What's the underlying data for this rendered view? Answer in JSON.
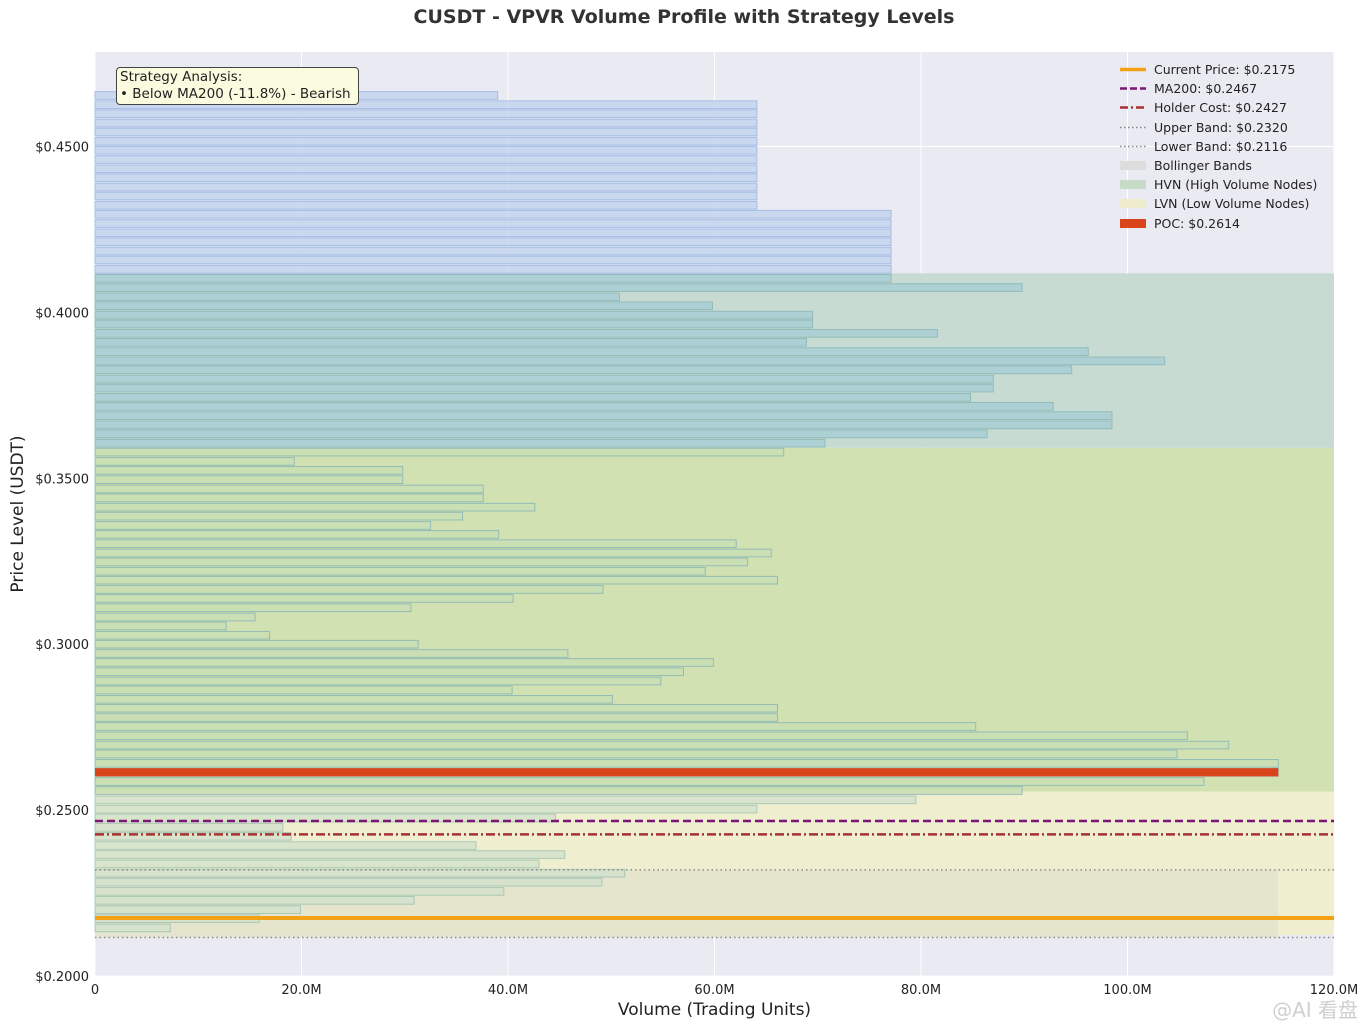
{
  "chart_data": {
    "type": "bar",
    "orientation": "horizontal",
    "title": "CUSDT - VPVR Volume Profile with Strategy Levels",
    "xlabel": "Volume (Trading Units)",
    "ylabel": "Price Level (USDT)",
    "xlim": [
      0,
      120
    ],
    "ylim": [
      0.2,
      0.4785
    ],
    "x_ticks": [
      {
        "value": 0,
        "label": "0"
      },
      {
        "value": 20,
        "label": "20.0M"
      },
      {
        "value": 40,
        "label": "40.0M"
      },
      {
        "value": 60,
        "label": "60.0M"
      },
      {
        "value": 80,
        "label": "80.0M"
      },
      {
        "value": 100,
        "label": "100.0M"
      },
      {
        "value": 120,
        "label": "120.0M"
      }
    ],
    "y_ticks": [
      {
        "value": 0.2,
        "label": "$0.2000"
      },
      {
        "value": 0.25,
        "label": "$0.2500"
      },
      {
        "value": 0.3,
        "label": "$0.3000"
      },
      {
        "value": 0.35,
        "label": "$0.3500"
      },
      {
        "value": 0.4,
        "label": "$0.4000"
      },
      {
        "value": 0.45,
        "label": "$0.4500"
      }
    ],
    "grid": true,
    "volume_unit": "M",
    "profile": [
      {
        "price": 0.2145,
        "volume": 7.3
      },
      {
        "price": 0.2173,
        "volume": 15.9
      },
      {
        "price": 0.22,
        "volume": 19.9
      },
      {
        "price": 0.2228,
        "volume": 30.9
      },
      {
        "price": 0.2255,
        "volume": 39.6
      },
      {
        "price": 0.2283,
        "volume": 49.1
      },
      {
        "price": 0.231,
        "volume": 51.3
      },
      {
        "price": 0.2338,
        "volume": 43.0
      },
      {
        "price": 0.2366,
        "volume": 45.5
      },
      {
        "price": 0.2393,
        "volume": 36.9
      },
      {
        "price": 0.2421,
        "volume": 19.0
      },
      {
        "price": 0.2448,
        "volume": 18.2
      },
      {
        "price": 0.2476,
        "volume": 44.6
      },
      {
        "price": 0.2503,
        "volume": 64.1
      },
      {
        "price": 0.2531,
        "volume": 79.5
      },
      {
        "price": 0.2559,
        "volume": 89.8
      },
      {
        "price": 0.2586,
        "volume": 107.4
      },
      {
        "price": 0.2614,
        "volume": 114.6
      },
      {
        "price": 0.2641,
        "volume": 114.6
      },
      {
        "price": 0.2669,
        "volume": 104.8
      },
      {
        "price": 0.2696,
        "volume": 109.8
      },
      {
        "price": 0.2724,
        "volume": 105.8
      },
      {
        "price": 0.2752,
        "volume": 85.3
      },
      {
        "price": 0.2779,
        "volume": 66.1
      },
      {
        "price": 0.2807,
        "volume": 66.1
      },
      {
        "price": 0.2834,
        "volume": 50.1
      },
      {
        "price": 0.2862,
        "volume": 40.4
      },
      {
        "price": 0.2889,
        "volume": 54.8
      },
      {
        "price": 0.2917,
        "volume": 57.0
      },
      {
        "price": 0.2945,
        "volume": 59.9
      },
      {
        "price": 0.2972,
        "volume": 45.8
      },
      {
        "price": 0.3,
        "volume": 31.3
      },
      {
        "price": 0.3027,
        "volume": 16.9
      },
      {
        "price": 0.3055,
        "volume": 12.7
      },
      {
        "price": 0.3082,
        "volume": 15.5
      },
      {
        "price": 0.311,
        "volume": 30.6
      },
      {
        "price": 0.3138,
        "volume": 40.5
      },
      {
        "price": 0.3165,
        "volume": 49.2
      },
      {
        "price": 0.3193,
        "volume": 66.1
      },
      {
        "price": 0.322,
        "volume": 59.1
      },
      {
        "price": 0.3248,
        "volume": 63.2
      },
      {
        "price": 0.3275,
        "volume": 65.5
      },
      {
        "price": 0.3303,
        "volume": 62.1
      },
      {
        "price": 0.3331,
        "volume": 39.1
      },
      {
        "price": 0.3358,
        "volume": 32.5
      },
      {
        "price": 0.3386,
        "volume": 35.6
      },
      {
        "price": 0.3413,
        "volume": 42.6
      },
      {
        "price": 0.3441,
        "volume": 37.6
      },
      {
        "price": 0.3468,
        "volume": 37.6
      },
      {
        "price": 0.3496,
        "volume": 29.8
      },
      {
        "price": 0.3524,
        "volume": 29.8
      },
      {
        "price": 0.3551,
        "volume": 19.3
      },
      {
        "price": 0.3579,
        "volume": 66.7
      },
      {
        "price": 0.3606,
        "volume": 70.7
      },
      {
        "price": 0.3634,
        "volume": 86.4
      },
      {
        "price": 0.3661,
        "volume": 98.5
      },
      {
        "price": 0.3689,
        "volume": 98.5
      },
      {
        "price": 0.3717,
        "volume": 92.8
      },
      {
        "price": 0.3744,
        "volume": 84.8
      },
      {
        "price": 0.3772,
        "volume": 87.0
      },
      {
        "price": 0.3799,
        "volume": 87.0
      },
      {
        "price": 0.3827,
        "volume": 94.6
      },
      {
        "price": 0.3854,
        "volume": 103.6
      },
      {
        "price": 0.3882,
        "volume": 96.2
      },
      {
        "price": 0.391,
        "volume": 68.9
      },
      {
        "price": 0.3937,
        "volume": 81.6
      },
      {
        "price": 0.3965,
        "volume": 69.5
      },
      {
        "price": 0.3992,
        "volume": 69.5
      },
      {
        "price": 0.402,
        "volume": 59.8
      },
      {
        "price": 0.4047,
        "volume": 50.8
      },
      {
        "price": 0.4075,
        "volume": 89.8
      },
      {
        "price": 0.4103,
        "volume": 77.1
      },
      {
        "price": 0.413,
        "volume": 77.1
      },
      {
        "price": 0.4158,
        "volume": 77.1
      },
      {
        "price": 0.4185,
        "volume": 77.1
      },
      {
        "price": 0.4213,
        "volume": 77.1
      },
      {
        "price": 0.424,
        "volume": 77.1
      },
      {
        "price": 0.4268,
        "volume": 77.1
      },
      {
        "price": 0.4296,
        "volume": 77.1
      },
      {
        "price": 0.4323,
        "volume": 64.1
      },
      {
        "price": 0.4351,
        "volume": 64.1
      },
      {
        "price": 0.4378,
        "volume": 64.1
      },
      {
        "price": 0.4406,
        "volume": 64.1
      },
      {
        "price": 0.4433,
        "volume": 64.1
      },
      {
        "price": 0.4461,
        "volume": 64.1
      },
      {
        "price": 0.4489,
        "volume": 64.1
      },
      {
        "price": 0.4516,
        "volume": 64.1
      },
      {
        "price": 0.4544,
        "volume": 64.1
      },
      {
        "price": 0.4571,
        "volume": 64.1
      },
      {
        "price": 0.4599,
        "volume": 64.1
      },
      {
        "price": 0.4626,
        "volume": 64.1
      },
      {
        "price": 0.4654,
        "volume": 39.0
      }
    ],
    "poc": {
      "price": 0.2614,
      "volume": 114.6
    },
    "zones": {
      "hvn": {
        "low": 0.3592,
        "high": 0.4118
      },
      "lvn": {
        "low": 0.2124,
        "high": 0.2556
      },
      "upper_hvn_band": {
        "low": 0.2556,
        "high": 0.3592
      },
      "bollinger": {
        "low": 0.2116,
        "high": 0.232,
        "xmax": 114.6
      }
    },
    "levels": {
      "current_price": 0.2175,
      "ma200": 0.2467,
      "holder_cost": 0.2427,
      "upper_band": 0.232,
      "lower_band": 0.2116
    },
    "legend": {
      "placement": "top-right",
      "items": [
        {
          "label": "Current Price: $0.2175",
          "style": "solid-thick",
          "color": "#f5a115"
        },
        {
          "label": "MA200: $0.2467",
          "style": "dashed",
          "color": "#7b1578"
        },
        {
          "label": "Holder Cost: $0.2427",
          "style": "dashdot",
          "color": "#a83232"
        },
        {
          "label": "Upper Band: $0.2320",
          "style": "dotted",
          "color": "#888888"
        },
        {
          "label": "Lower Band: $0.2116",
          "style": "dotted",
          "color": "#888888"
        },
        {
          "label": "Bollinger Bands",
          "style": "patch",
          "color": "#dcdcdc"
        },
        {
          "label": "HVN (High Volume Nodes)",
          "style": "patch",
          "color": "#c6dcc8"
        },
        {
          "label": "LVN (Low Volume Nodes)",
          "style": "patch",
          "color": "#eeeccc"
        },
        {
          "label": "POC: $0.2614",
          "style": "patch",
          "color": "#d9441a"
        }
      ]
    },
    "annotation": {
      "title": "Strategy Analysis:",
      "line": "• Below MA200 (-11.8%) - Bearish"
    },
    "colors": {
      "plot_background": "#eaeaf2",
      "bar_upper": "#c6d6ef",
      "bar_upper_edge": "#9fb9e4",
      "bar_hvn": "#a9cfd5",
      "bar_mid": "#cbdfb6",
      "bar_lvn": "#d3e2cc",
      "bar_edge": "#8ab6b6",
      "hvn_zone": "#c8dbd2",
      "mid_zone": "#d1e1b1",
      "lvn_zone": "#efefd0",
      "bollinger_zone": "#e2e2cd",
      "poc": "#d9441a"
    }
  },
  "watermark": "@AI 看盘"
}
